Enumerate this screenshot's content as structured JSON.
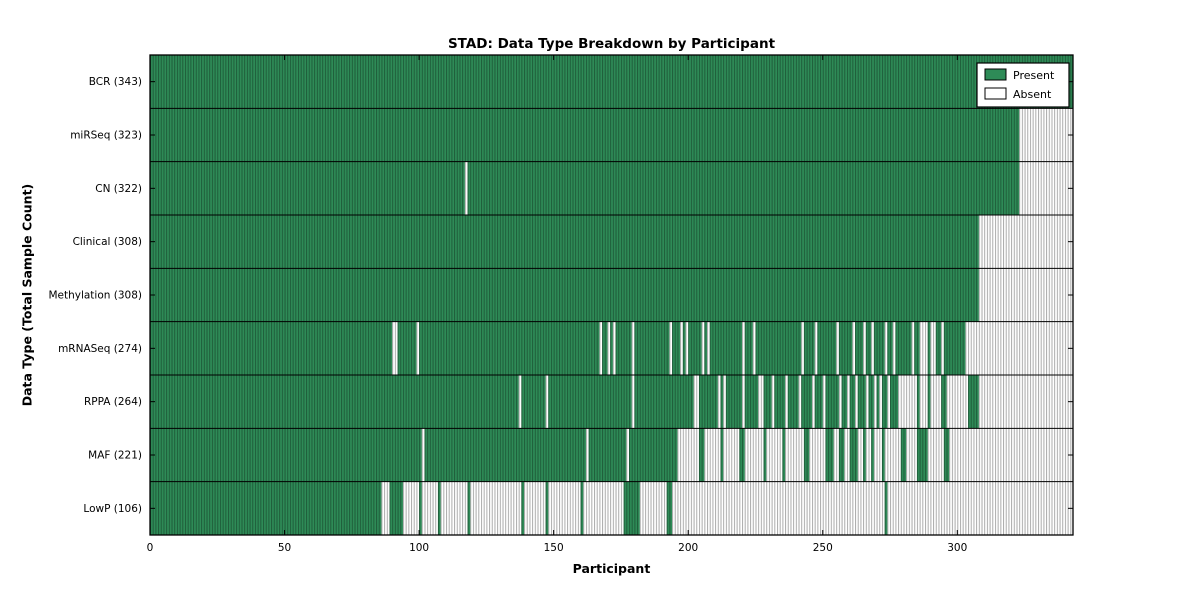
{
  "chart_data": {
    "type": "heatmap",
    "title": "STAD: Data Type Breakdown by Participant",
    "xlabel": "Participant",
    "ylabel": "Data Type (Total Sample Count)",
    "n_participants": 343,
    "xlim": [
      0,
      343
    ],
    "xticks": [
      0,
      50,
      100,
      150,
      200,
      250,
      300
    ],
    "grid": "row-separators-black",
    "colors": {
      "present": "#2e8b57",
      "absent": "#ffffff",
      "edge": "#000000",
      "background": "#ffffff"
    },
    "legend": {
      "position": "upper right",
      "entries": [
        {
          "label": "Present",
          "color": "#2e8b57"
        },
        {
          "label": "Absent",
          "color": "#ffffff"
        }
      ]
    },
    "rows": [
      {
        "name": "BCR",
        "label": "BCR (343)",
        "total": 343,
        "absent_ranges": []
      },
      {
        "name": "miRSeq",
        "label": "miRSeq (323)",
        "total": 323,
        "absent_ranges": [
          [
            323,
            342
          ]
        ]
      },
      {
        "name": "CN",
        "label": "CN (322)",
        "total": 322,
        "absent_ranges": [
          [
            117,
            117
          ],
          [
            323,
            342
          ]
        ]
      },
      {
        "name": "Clinical",
        "label": "Clinical (308)",
        "total": 308,
        "absent_ranges": [
          [
            308,
            342
          ]
        ]
      },
      {
        "name": "Methylation",
        "label": "Methylation (308)",
        "total": 308,
        "absent_ranges": [
          [
            308,
            342
          ]
        ]
      },
      {
        "name": "mRNASeq",
        "label": "mRNASeq (274)",
        "total": 274,
        "absent_ranges": [
          [
            90,
            91
          ],
          [
            99,
            99
          ],
          [
            167,
            167
          ],
          [
            170,
            170
          ],
          [
            172,
            172
          ],
          [
            179,
            179
          ],
          [
            193,
            193
          ],
          [
            197,
            197
          ],
          [
            199,
            199
          ],
          [
            205,
            205
          ],
          [
            207,
            207
          ],
          [
            220,
            220
          ],
          [
            224,
            224
          ],
          [
            242,
            242
          ],
          [
            247,
            247
          ],
          [
            255,
            255
          ],
          [
            261,
            261
          ],
          [
            265,
            265
          ],
          [
            268,
            268
          ],
          [
            273,
            273
          ],
          [
            276,
            276
          ],
          [
            283,
            283
          ],
          [
            286,
            288
          ],
          [
            290,
            291
          ],
          [
            294,
            294
          ],
          [
            303,
            342
          ]
        ]
      },
      {
        "name": "RPPA",
        "label": "RPPA (264)",
        "total": 264,
        "absent_ranges": [
          [
            137,
            137
          ],
          [
            147,
            147
          ],
          [
            179,
            179
          ],
          [
            202,
            203
          ],
          [
            211,
            211
          ],
          [
            213,
            213
          ],
          [
            220,
            220
          ],
          [
            226,
            227
          ],
          [
            231,
            231
          ],
          [
            236,
            236
          ],
          [
            241,
            241
          ],
          [
            246,
            246
          ],
          [
            250,
            250
          ],
          [
            256,
            256
          ],
          [
            259,
            259
          ],
          [
            262,
            262
          ],
          [
            266,
            266
          ],
          [
            269,
            269
          ],
          [
            271,
            271
          ],
          [
            274,
            274
          ],
          [
            278,
            284
          ],
          [
            286,
            288
          ],
          [
            290,
            293
          ],
          [
            296,
            303
          ],
          [
            308,
            342
          ]
        ]
      },
      {
        "name": "MAF",
        "label": "MAF (221)",
        "total": 221,
        "absent_ranges": [
          [
            101,
            101
          ],
          [
            162,
            162
          ],
          [
            177,
            177
          ],
          [
            196,
            203
          ],
          [
            206,
            211
          ],
          [
            213,
            218
          ],
          [
            221,
            227
          ],
          [
            229,
            234
          ],
          [
            236,
            242
          ],
          [
            245,
            250
          ],
          [
            254,
            255
          ],
          [
            258,
            259
          ],
          [
            263,
            264
          ],
          [
            266,
            267
          ],
          [
            269,
            271
          ],
          [
            273,
            278
          ],
          [
            281,
            284
          ],
          [
            289,
            294
          ],
          [
            297,
            342
          ]
        ]
      },
      {
        "name": "LowP",
        "label": "LowP (106)",
        "total": 106,
        "absent_ranges": [
          [
            86,
            88
          ],
          [
            94,
            99
          ],
          [
            101,
            106
          ],
          [
            108,
            117
          ],
          [
            119,
            137
          ],
          [
            139,
            146
          ],
          [
            148,
            159
          ],
          [
            161,
            175
          ],
          [
            182,
            191
          ],
          [
            194,
            272
          ],
          [
            274,
            342
          ]
        ]
      }
    ]
  }
}
